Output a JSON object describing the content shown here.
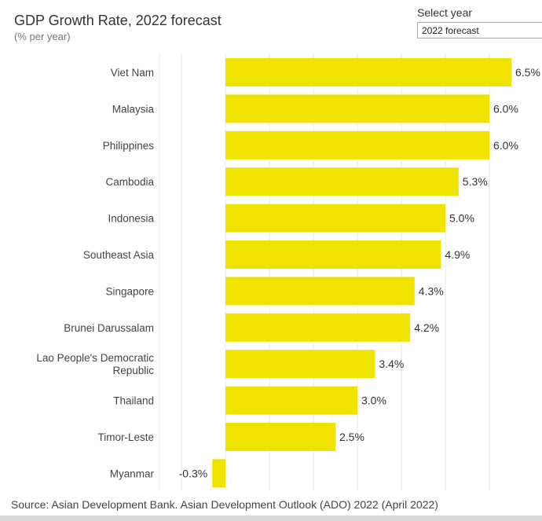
{
  "chart_data": {
    "type": "bar",
    "orientation": "horizontal",
    "title": "GDP Growth Rate, 2022 forecast",
    "subtitle": "(% per year)",
    "categories": [
      "Viet Nam",
      "Malaysia",
      "Philippines",
      "Cambodia",
      "Indonesia",
      "Southeast Asia",
      "Singapore",
      "Brunei Darussalam",
      "Lao People's Democratic Republic",
      "Thailand",
      "Timor-Leste",
      "Myanmar"
    ],
    "category_lines": [
      [
        "Viet Nam"
      ],
      [
        "Malaysia"
      ],
      [
        "Philippines"
      ],
      [
        "Cambodia"
      ],
      [
        "Indonesia"
      ],
      [
        "Southeast Asia"
      ],
      [
        "Singapore"
      ],
      [
        "Brunei Darussalam"
      ],
      [
        "Lao People's Democratic",
        "Republic"
      ],
      [
        "Thailand"
      ],
      [
        "Timor-Leste"
      ],
      [
        "Myanmar"
      ]
    ],
    "values": [
      6.5,
      6.0,
      6.0,
      5.3,
      5.0,
      4.9,
      4.3,
      4.2,
      3.4,
      3.0,
      2.5,
      -0.3
    ],
    "data_labels": [
      "6.5%",
      "6.0%",
      "6.0%",
      "5.3%",
      "5.0%",
      "4.9%",
      "4.3%",
      "4.2%",
      "3.4%",
      "3.0%",
      "2.5%",
      "-0.3%"
    ],
    "xlim": [
      -1.5,
      7
    ],
    "gridlines": [
      -1,
      0,
      1,
      2,
      3,
      4,
      5,
      6
    ],
    "grid": true,
    "bar_color": "#f0e300",
    "source": "Source: Asian Development Bank. Asian Development Outlook (ADO) 2022 (April 2022)"
  },
  "controls": {
    "select_label": "Select year",
    "select_value": "2022 forecast"
  }
}
